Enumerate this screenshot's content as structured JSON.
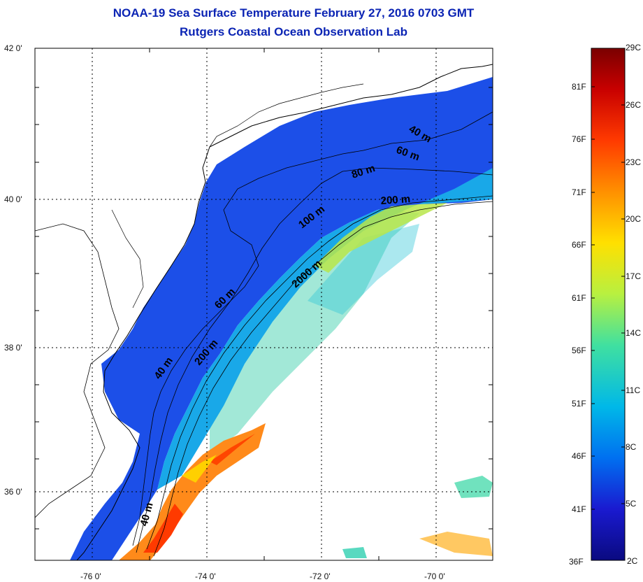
{
  "header": {
    "title": "NOAA-19 Sea Surface Temperature February 27, 2016 0703 GMT",
    "subtitle": "Rutgers Coastal Ocean Observation Lab"
  },
  "map": {
    "lon_labels": [
      "-76 0'",
      "-74 0'",
      "-72 0'",
      "-70 0'"
    ],
    "lat_labels": [
      "42 0'",
      "40 0'",
      "38 0'",
      "36 0'"
    ],
    "contour_labels": [
      "40 m",
      "60 m",
      "80 m",
      "200 m",
      "100 m",
      "2000 m",
      "60 m",
      "200 m",
      "40 m",
      "40 m"
    ]
  },
  "colorbar": {
    "celsius": [
      "29C",
      "26C",
      "23C",
      "20C",
      "17C",
      "14C",
      "11C",
      "8C",
      "5C",
      "2C"
    ],
    "fahrenheit": [
      "81F",
      "76F",
      "71F",
      "66F",
      "61F",
      "56F",
      "51F",
      "46F",
      "41F",
      "36F"
    ],
    "colors": [
      "#7a0000",
      "#c80000",
      "#ff3a00",
      "#ff9000",
      "#ffe000",
      "#b8f040",
      "#40e0a0",
      "#00b8e8",
      "#0070f0",
      "#1a1ad0",
      "#0a0a80"
    ]
  }
}
